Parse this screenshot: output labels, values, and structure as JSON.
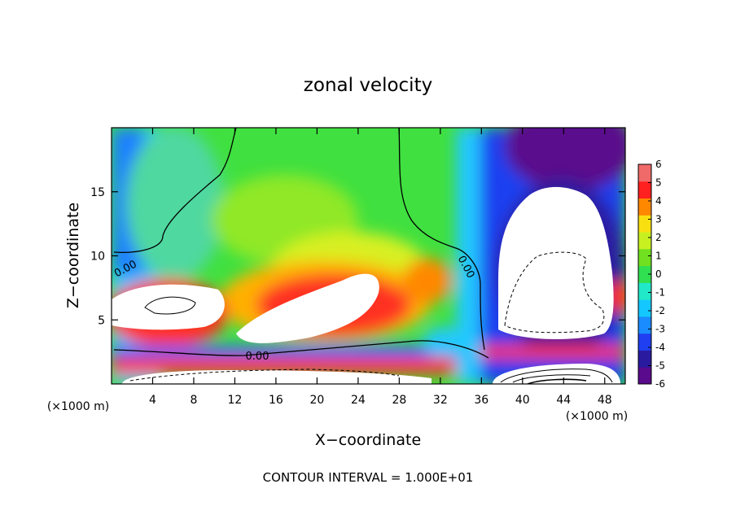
{
  "chart_data": {
    "type": "heatmap",
    "title": "zonal velocity",
    "xlabel": "X−coordinate",
    "ylabel": "Z−coordinate",
    "x_unit_label": "(×1000 m)",
    "z_unit_label": "(×1000 m)",
    "footer": "CONTOUR INTERVAL = 1.000E+01",
    "contour_label": "0.00",
    "xlim": [
      0,
      50
    ],
    "ylim": [
      0,
      20
    ],
    "x_ticks": [
      4,
      8,
      12,
      16,
      20,
      24,
      28,
      32,
      36,
      40,
      44,
      48
    ],
    "y_ticks": [
      5,
      10,
      15
    ],
    "colorbar": {
      "range": [
        -6,
        6
      ],
      "ticks": [
        6,
        5,
        4,
        3,
        2,
        1,
        0,
        -1,
        -2,
        -3,
        -4,
        -5,
        -6
      ],
      "colors": [
        "#5a0a8c",
        "#2a1aa0",
        "#1f3ff0",
        "#1a8cff",
        "#14c8ff",
        "#20e8c8",
        "#30e050",
        "#70e020",
        "#c8f020",
        "#f8e010",
        "#ff8800",
        "#ff2020",
        "#f06a6a"
      ]
    }
  }
}
